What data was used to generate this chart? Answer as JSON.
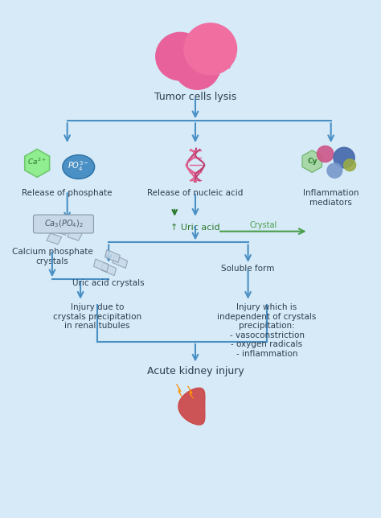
{
  "bg_color": "#d6eaf8",
  "arrow_color": "#4a90c4",
  "title": "Tumor cells lysis",
  "node_texts": {
    "tumor": "Tumor cells lysis",
    "phosphate": "Release of phosphate",
    "nucleic": "Release of nucleic acid",
    "uric_acid": "↑ Uric acid",
    "inflammation": "Inflammation\nmediators",
    "ca_phosphate": "Calcium phosphate\ncrystals",
    "uric_crystals": "Uric acid crystals",
    "soluble": "Soluble form",
    "crystal_label": "Crystal",
    "injury_crystal": "Injury due to\ncrystals precipitation\nin renal tubules",
    "injury_indep": "Injury which is\nindependent of crystals\nprecipitation:\n- vasoconstriction\n- oxygen radicals\n- inflammation",
    "aki": "Acute kidney injury",
    "ca2_label": "Ca²⁺",
    "po4_label": "PO₄³⁻",
    "cy_label": "Cy"
  },
  "text_color": "#2c3e50",
  "arrow_blue": "#4a90c4",
  "green_arrow": "#4a9e4a",
  "ca2_color": "#90ee90",
  "po4_color": "#5b9bd5",
  "cy_color": "#dda0dd"
}
